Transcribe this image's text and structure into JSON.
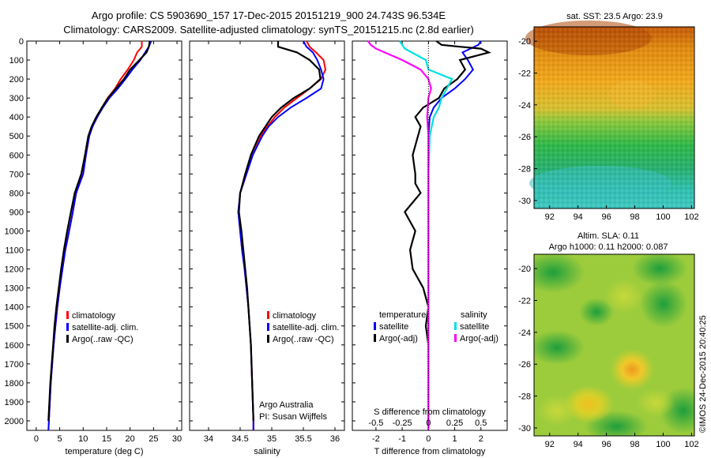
{
  "header": {
    "line1": "Argo profile: CS 5903690_157 17-Dec-2015 20151219_900 24.743S 96.534E",
    "line2": "Climatology: CARS2009. Satellite-adjusted climatology: synTS_20151215.nc (2.8d earlier)"
  },
  "side_text": {
    "watermark": "©IMOS 24-Dec-2015 20:40:25",
    "credit1": "Argo Australia",
    "credit2": "PI: Susan Wijffels"
  },
  "colors": {
    "climatology": "#ff0000",
    "satellite": "#0000ff",
    "argo": "#000000",
    "sat_s": "#00e0e0",
    "argo_s": "#ff00ff"
  },
  "chart_data": [
    {
      "type": "line",
      "id": "temperature",
      "xlabel": "temperature (deg C)",
      "xlim": [
        -2,
        31
      ],
      "xticks": [
        0,
        5,
        10,
        15,
        20,
        25,
        30
      ],
      "ylim": [
        2050,
        0
      ],
      "yticks": [
        0,
        100,
        200,
        300,
        400,
        500,
        600,
        700,
        800,
        900,
        1000,
        1100,
        1200,
        1300,
        1400,
        1500,
        1600,
        1700,
        1800,
        1900,
        2000
      ],
      "legend": [
        "climatology",
        "satellite-adj. clim.",
        "Argo(..raw -QC)"
      ],
      "series": [
        {
          "name": "climatology",
          "points": [
            [
              22.5,
              0
            ],
            [
              22.5,
              30
            ],
            [
              21.5,
              60
            ],
            [
              20.8,
              100
            ],
            [
              19.5,
              150
            ],
            [
              18,
              200
            ],
            [
              16.8,
              250
            ],
            [
              15.2,
              300
            ],
            [
              14,
              350
            ],
            [
              13,
              400
            ],
            [
              12,
              450
            ],
            [
              11.3,
              500
            ],
            [
              10.6,
              600
            ],
            [
              10,
              700
            ],
            [
              8.5,
              800
            ],
            [
              7.8,
              900
            ],
            [
              7,
              1000
            ],
            [
              6.2,
              1100
            ],
            [
              5.6,
              1200
            ],
            [
              5,
              1300
            ],
            [
              4.5,
              1400
            ],
            [
              4.1,
              1500
            ],
            [
              3.7,
              1600
            ],
            [
              3.4,
              1700
            ],
            [
              3.1,
              1800
            ],
            [
              2.9,
              1900
            ],
            [
              2.7,
              2000
            ],
            [
              2.6,
              2050
            ]
          ]
        },
        {
          "name": "satellite-adj. clim.",
          "points": [
            [
              24.5,
              0
            ],
            [
              24,
              30
            ],
            [
              23.2,
              60
            ],
            [
              22.2,
              100
            ],
            [
              20.5,
              150
            ],
            [
              19,
              200
            ],
            [
              17.4,
              250
            ],
            [
              15.6,
              300
            ],
            [
              14.2,
              350
            ],
            [
              13,
              400
            ],
            [
              12,
              450
            ],
            [
              11.3,
              500
            ],
            [
              10.6,
              600
            ],
            [
              10,
              700
            ],
            [
              8.5,
              800
            ],
            [
              7.8,
              900
            ],
            [
              7,
              1000
            ],
            [
              6.2,
              1100
            ],
            [
              5.6,
              1200
            ],
            [
              5,
              1300
            ],
            [
              4.5,
              1400
            ],
            [
              4.1,
              1500
            ],
            [
              3.7,
              1600
            ],
            [
              3.4,
              1700
            ],
            [
              3.1,
              1800
            ],
            [
              2.9,
              1900
            ],
            [
              2.7,
              2000
            ],
            [
              2.6,
              2050
            ]
          ]
        },
        {
          "name": "Argo(..raw -QC)",
          "points": [
            [
              24.2,
              0
            ],
            [
              24,
              30
            ],
            [
              23.5,
              60
            ],
            [
              22,
              100
            ],
            [
              20,
              150
            ],
            [
              18.7,
              200
            ],
            [
              17,
              250
            ],
            [
              15.3,
              300
            ],
            [
              14,
              350
            ],
            [
              12.8,
              400
            ],
            [
              11.8,
              450
            ],
            [
              11.1,
              500
            ],
            [
              10.4,
              600
            ],
            [
              9.6,
              700
            ],
            [
              8.2,
              800
            ],
            [
              7.4,
              900
            ],
            [
              6.6,
              1000
            ],
            [
              5.9,
              1100
            ],
            [
              5.3,
              1200
            ],
            [
              4.8,
              1300
            ],
            [
              4.3,
              1400
            ],
            [
              3.9,
              1500
            ],
            [
              3.6,
              1600
            ],
            [
              3.3,
              1700
            ],
            [
              3,
              1800
            ],
            [
              2.8,
              1900
            ],
            [
              2.6,
              2000
            ]
          ]
        }
      ]
    },
    {
      "type": "line",
      "id": "salinity",
      "xlabel": "salinity",
      "xlim": [
        33.7,
        36.15
      ],
      "xticks": [
        34,
        34.5,
        35,
        35.5,
        36
      ],
      "ylim": [
        2050,
        0
      ],
      "legend": [
        "climatology",
        "satellite-adj. clim.",
        "Argo(..raw -QC)"
      ],
      "series": [
        {
          "name": "climatology",
          "points": [
            [
              35.55,
              0
            ],
            [
              35.6,
              30
            ],
            [
              35.7,
              60
            ],
            [
              35.82,
              100
            ],
            [
              35.85,
              150
            ],
            [
              35.78,
              200
            ],
            [
              35.6,
              250
            ],
            [
              35.4,
              300
            ],
            [
              35.2,
              350
            ],
            [
              35.05,
              400
            ],
            [
              34.93,
              450
            ],
            [
              34.83,
              500
            ],
            [
              34.7,
              600
            ],
            [
              34.6,
              700
            ],
            [
              34.5,
              800
            ],
            [
              34.47,
              900
            ],
            [
              34.5,
              1000
            ],
            [
              34.53,
              1100
            ],
            [
              34.57,
              1200
            ],
            [
              34.6,
              1300
            ],
            [
              34.63,
              1400
            ],
            [
              34.65,
              1500
            ],
            [
              34.67,
              1600
            ],
            [
              34.68,
              1700
            ],
            [
              34.69,
              1800
            ],
            [
              34.7,
              1900
            ],
            [
              34.71,
              2000
            ],
            [
              34.71,
              2050
            ]
          ]
        },
        {
          "name": "satellite-adj. clim.",
          "points": [
            [
              35.5,
              0
            ],
            [
              35.55,
              30
            ],
            [
              35.65,
              60
            ],
            [
              35.72,
              100
            ],
            [
              35.78,
              150
            ],
            [
              35.82,
              200
            ],
            [
              35.78,
              250
            ],
            [
              35.55,
              300
            ],
            [
              35.3,
              350
            ],
            [
              35.1,
              400
            ],
            [
              34.95,
              450
            ],
            [
              34.85,
              500
            ],
            [
              34.7,
              600
            ],
            [
              34.6,
              700
            ],
            [
              34.5,
              800
            ],
            [
              34.47,
              900
            ],
            [
              34.5,
              1000
            ],
            [
              34.53,
              1100
            ],
            [
              34.57,
              1200
            ],
            [
              34.6,
              1300
            ],
            [
              34.63,
              1400
            ],
            [
              34.65,
              1500
            ],
            [
              34.67,
              1600
            ],
            [
              34.68,
              1700
            ],
            [
              34.69,
              1800
            ],
            [
              34.7,
              1900
            ],
            [
              34.71,
              2000
            ],
            [
              34.71,
              2050
            ]
          ]
        },
        {
          "name": "Argo(..raw -QC)",
          "points": [
            [
              35.1,
              0
            ],
            [
              35.1,
              30
            ],
            [
              35.4,
              60
            ],
            [
              35.6,
              100
            ],
            [
              35.75,
              150
            ],
            [
              35.77,
              200
            ],
            [
              35.6,
              250
            ],
            [
              35.35,
              300
            ],
            [
              35.15,
              350
            ],
            [
              35,
              400
            ],
            [
              34.9,
              450
            ],
            [
              34.8,
              500
            ],
            [
              34.67,
              600
            ],
            [
              34.58,
              700
            ],
            [
              34.5,
              800
            ],
            [
              34.48,
              900
            ],
            [
              34.52,
              1000
            ],
            [
              34.55,
              1100
            ],
            [
              34.58,
              1200
            ],
            [
              34.61,
              1300
            ],
            [
              34.63,
              1400
            ],
            [
              34.65,
              1500
            ],
            [
              34.67,
              1600
            ],
            [
              34.68,
              1700
            ],
            [
              34.69,
              1800
            ],
            [
              34.7,
              1900
            ],
            [
              34.71,
              2000
            ]
          ]
        }
      ]
    },
    {
      "type": "line",
      "id": "differences",
      "xlabel": "T difference from climatology",
      "xlabel2": "S difference from climatology",
      "xlim": [
        -2.9,
        3
      ],
      "xticks": [
        -2,
        -1,
        0,
        1,
        2
      ],
      "s_xticks": [
        -0.5,
        -0.25,
        0,
        0.25,
        0.5
      ],
      "ylim": [
        2050,
        0
      ],
      "legend_headers": [
        "temperature",
        "salinity"
      ],
      "legend": [
        "satellite",
        "Argo(-adj)",
        "satellite",
        "Argo(-adj)"
      ],
      "series": [
        {
          "name": "T satellite",
          "points": [
            [
              2,
              0
            ],
            [
              1.9,
              20
            ],
            [
              1.6,
              40
            ],
            [
              1.3,
              60
            ],
            [
              1.5,
              100
            ],
            [
              1.7,
              150
            ],
            [
              1.4,
              200
            ],
            [
              1.0,
              250
            ],
            [
              0.5,
              300
            ],
            [
              0.2,
              350
            ],
            [
              0.05,
              400
            ],
            [
              0,
              500
            ],
            [
              0,
              700
            ],
            [
              0,
              2050
            ]
          ]
        },
        {
          "name": "T Argo(-adj)",
          "points": [
            [
              0.3,
              0
            ],
            [
              0.5,
              20
            ],
            [
              1.2,
              30
            ],
            [
              2,
              40
            ],
            [
              2.3,
              60
            ],
            [
              1.2,
              100
            ],
            [
              1.4,
              150
            ],
            [
              1.1,
              200
            ],
            [
              0.6,
              250
            ],
            [
              0.4,
              300
            ],
            [
              -0.2,
              350
            ],
            [
              -0.5,
              400
            ],
            [
              -0.3,
              450
            ],
            [
              -0.4,
              500
            ],
            [
              -0.6,
              600
            ],
            [
              -0.5,
              700
            ],
            [
              -0.5,
              750
            ],
            [
              -0.3,
              800
            ],
            [
              -0.9,
              900
            ],
            [
              -0.5,
              1000
            ],
            [
              -0.7,
              1100
            ],
            [
              -0.6,
              1200
            ],
            [
              -0.2,
              1300
            ],
            [
              0,
              1400
            ],
            [
              -0.1,
              1500
            ],
            [
              0,
              1600
            ],
            [
              0,
              2000
            ]
          ]
        },
        {
          "name": "S satellite",
          "points": [
            [
              -1.1,
              0
            ],
            [
              -1.0,
              20
            ],
            [
              -0.9,
              40
            ],
            [
              -0.1,
              100
            ],
            [
              0,
              150
            ],
            [
              0.9,
              200
            ],
            [
              0.7,
              250
            ],
            [
              0.5,
              300
            ],
            [
              0.4,
              350
            ],
            [
              0.2,
              400
            ],
            [
              0.05,
              500
            ],
            [
              0,
              700
            ],
            [
              0,
              2050
            ]
          ]
        },
        {
          "name": "S Argo(-adj)",
          "points": [
            [
              -2.3,
              0
            ],
            [
              -2.2,
              20
            ],
            [
              -2.0,
              40
            ],
            [
              -1.0,
              100
            ],
            [
              -0.3,
              150
            ],
            [
              0,
              200
            ],
            [
              0.1,
              250
            ],
            [
              0,
              300
            ],
            [
              -0.05,
              400
            ],
            [
              0,
              500
            ],
            [
              0,
              700
            ],
            [
              0,
              2050
            ]
          ]
        }
      ]
    },
    {
      "type": "heatmap",
      "id": "sst_map",
      "title": "sat. SST: 23.5 Argo: 23.9",
      "xticks": [
        92,
        94,
        96,
        98,
        100,
        102
      ],
      "yticks": [
        -20,
        -22,
        -24,
        -26,
        -28,
        -30
      ],
      "xlim": [
        90.9,
        102.2
      ],
      "ylim": [
        -30.5,
        -19.1
      ],
      "argo_location": [
        96.534,
        -24.743
      ]
    },
    {
      "type": "heatmap",
      "id": "sla_map",
      "title": "Altim. SLA: 0.11",
      "title2": "Argo h1000: 0.11 h2000: 0.087",
      "xticks": [
        92,
        94,
        96,
        98,
        100,
        102
      ],
      "yticks": [
        -20,
        -22,
        -24,
        -26,
        -28,
        -30
      ],
      "xlim": [
        90.9,
        102.2
      ],
      "ylim": [
        -30.5,
        -19.1
      ],
      "argo_location": [
        96.534,
        -24.743
      ]
    }
  ]
}
